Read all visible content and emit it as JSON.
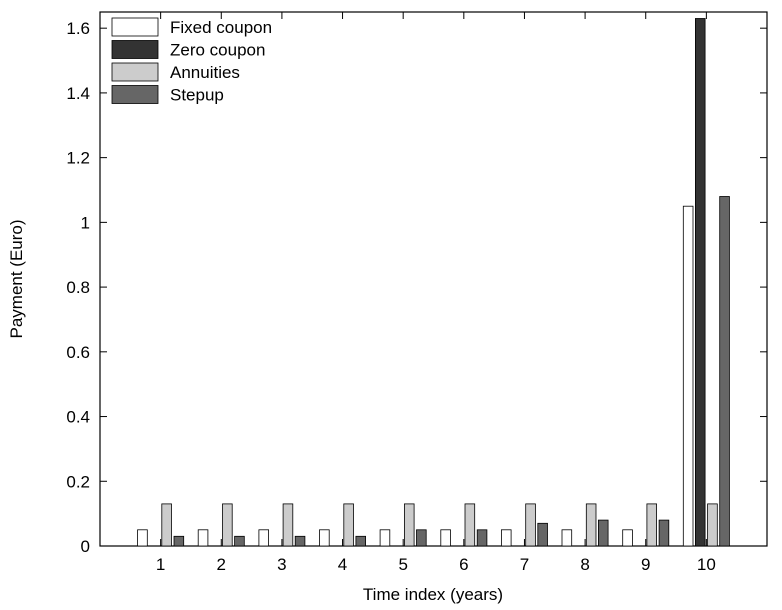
{
  "chart_data": {
    "type": "bar",
    "title": "",
    "xlabel": "Time index (years)",
    "ylabel": "Payment (Euro)",
    "categories": [
      "1",
      "2",
      "3",
      "4",
      "5",
      "6",
      "7",
      "8",
      "9",
      "10"
    ],
    "series": [
      {
        "name": "Fixed coupon",
        "color": "#ffffff",
        "values": [
          0.05,
          0.05,
          0.05,
          0.05,
          0.05,
          0.05,
          0.05,
          0.05,
          0.05,
          1.05
        ]
      },
      {
        "name": "Zero coupon",
        "color": "#333333",
        "values": [
          0,
          0,
          0,
          0,
          0,
          0,
          0,
          0,
          0,
          1.63
        ]
      },
      {
        "name": "Annuities",
        "color": "#cccccc",
        "values": [
          0.13,
          0.13,
          0.13,
          0.13,
          0.13,
          0.13,
          0.13,
          0.13,
          0.13,
          0.13
        ]
      },
      {
        "name": "Stepup",
        "color": "#666666",
        "values": [
          0.03,
          0.03,
          0.03,
          0.03,
          0.05,
          0.05,
          0.07,
          0.08,
          0.08,
          1.08
        ]
      }
    ],
    "xlim": [
      0,
      11
    ],
    "ylim": [
      0,
      1.65
    ],
    "yticks": [
      "0",
      "0.2",
      "0.4",
      "0.6",
      "0.8",
      "1",
      "1.2",
      "1.4",
      "1.6"
    ],
    "grid": false,
    "legend": "top-left"
  }
}
